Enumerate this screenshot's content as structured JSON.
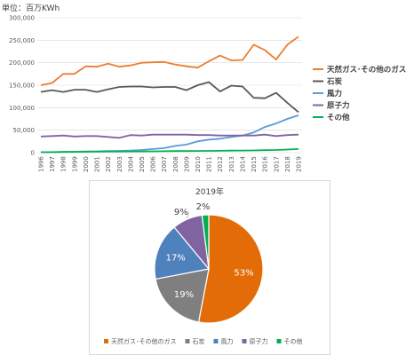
{
  "unit_label": "単位：百万KWh",
  "chart_data": [
    {
      "type": "line",
      "title": "",
      "xlabel": "",
      "ylabel": "",
      "ylim": [
        0,
        300000
      ],
      "yticks": [
        "0",
        "50,000",
        "100,000",
        "150,000",
        "200,000",
        "250,000",
        "300,000"
      ],
      "x": [
        "1996",
        "1997",
        "1998",
        "1999",
        "2000",
        "2001",
        "2002",
        "2003",
        "2004",
        "2005",
        "2006",
        "2007",
        "2008",
        "2009",
        "2010",
        "2011",
        "2012",
        "2013",
        "2014",
        "2015",
        "2016",
        "2017",
        "2018",
        "2019"
      ],
      "grid": true,
      "legend_position": "right",
      "series": [
        {
          "name": "天然ガス･その他のガス",
          "color": "#ed7d31",
          "values": [
            150000,
            155000,
            175000,
            175000,
            192000,
            191000,
            198000,
            191000,
            194000,
            200000,
            201000,
            202000,
            196000,
            192000,
            189000,
            203000,
            216000,
            205000,
            206000,
            240000,
            228000,
            207000,
            240000,
            258000
          ]
        },
        {
          "name": "石炭",
          "color": "#595959",
          "values": [
            135000,
            139000,
            135000,
            140000,
            140000,
            135000,
            141000,
            146000,
            147000,
            147000,
            145000,
            146000,
            146000,
            139000,
            150000,
            157000,
            136000,
            149000,
            147000,
            122000,
            121000,
            133000,
            111000,
            90000
          ]
        },
        {
          "name": "風力",
          "color": "#5b9bd5",
          "values": [
            1000,
            1000,
            1500,
            2000,
            2500,
            3000,
            3500,
            4000,
            4500,
            6000,
            8000,
            10000,
            15000,
            18000,
            25000,
            29000,
            31000,
            35000,
            38000,
            45000,
            57000,
            65000,
            75000,
            83000
          ]
        },
        {
          "name": "原子力",
          "color": "#8064a2",
          "values": [
            36000,
            37000,
            38000,
            36000,
            37000,
            37000,
            35000,
            33000,
            39000,
            38000,
            40000,
            40000,
            40000,
            40000,
            39000,
            39000,
            38000,
            38000,
            38000,
            38000,
            40000,
            37000,
            39000,
            40000
          ]
        },
        {
          "name": "その他",
          "color": "#00b050",
          "values": [
            1000,
            1200,
            1500,
            1800,
            2000,
            2200,
            2500,
            2600,
            2700,
            2800,
            3000,
            3200,
            3500,
            3600,
            3800,
            4000,
            4200,
            4500,
            4800,
            5000,
            5500,
            6000,
            7000,
            8000
          ]
        }
      ]
    },
    {
      "type": "pie",
      "title": "2019年",
      "legend_position": "bottom",
      "slices": [
        {
          "label": "天然ガス･その他のガス",
          "value": 53,
          "pct_label": "53%",
          "color": "#e36c09",
          "label_color": "#ffffff"
        },
        {
          "label": "石炭",
          "value": 19,
          "pct_label": "19%",
          "color": "#7f7f7f",
          "label_color": "#ffffff"
        },
        {
          "label": "風力",
          "value": 17,
          "pct_label": "17%",
          "color": "#4f81bd",
          "label_color": "#ffffff"
        },
        {
          "label": "原子力",
          "value": 9,
          "pct_label": "9%",
          "color": "#8064a2",
          "label_color": "#404040"
        },
        {
          "label": "その他",
          "value": 2,
          "pct_label": "2%",
          "color": "#00b050",
          "label_color": "#404040"
        }
      ]
    }
  ]
}
